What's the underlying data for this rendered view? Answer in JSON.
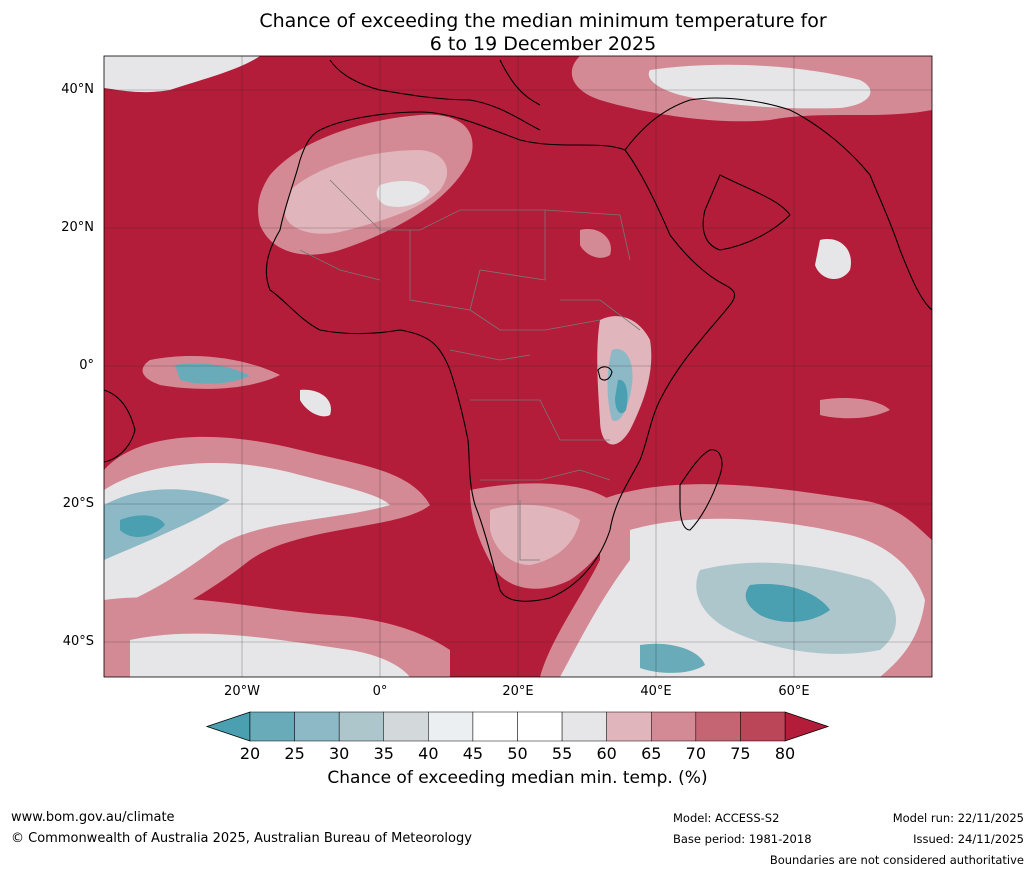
{
  "title": {
    "line1": "Chance of exceeding the median minimum temperature for",
    "line2": "6 to 19 December 2025"
  },
  "map": {
    "lat_labels": [
      "40°N",
      "20°N",
      "0°",
      "20°S",
      "40°S"
    ],
    "lat_values": [
      40,
      20,
      0,
      -20,
      -40
    ],
    "lon_labels": [
      "20°W",
      "0°",
      "20°E",
      "40°E",
      "60°E"
    ],
    "lon_values": [
      -20,
      0,
      20,
      40,
      60
    ],
    "extent": {
      "lon_min": -40,
      "lon_max": 80,
      "lat_min": -45,
      "lat_max": 45
    },
    "dominant_color": "#b41d3a"
  },
  "colorbar": {
    "ticks": [
      "20",
      "25",
      "30",
      "35",
      "40",
      "45",
      "50",
      "55",
      "60",
      "65",
      "70",
      "75",
      "80"
    ],
    "colors": [
      "#4a9fb0",
      "#6aabba",
      "#8db9c6",
      "#adc6cc",
      "#d3d8db",
      "#ebeff1",
      "#ffffff",
      "#ffffff",
      "#e6e6e8",
      "#e0b5bc",
      "#d48a95",
      "#c56573",
      "#bb4658",
      "#b41d3a"
    ],
    "under_color": "#4a9fb0",
    "over_color": "#b41d3a",
    "label": "Chance of exceeding median min. temp. (%)"
  },
  "footer": {
    "website": "www.bom.gov.au/climate",
    "copyright": "© Commonwealth of Australia 2025, Australian Bureau of Meteorology",
    "model": "Model: ACCESS-S2",
    "base_period": "Base period: 1981-2018",
    "model_run": "Model run: 22/11/2025",
    "issued": "Issued: 24/11/2025",
    "disclaimer": "Boundaries are not considered authoritative"
  }
}
